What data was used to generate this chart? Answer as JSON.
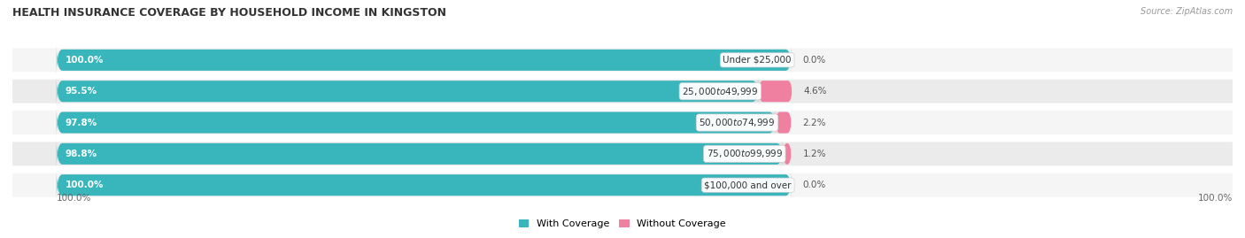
{
  "title": "HEALTH INSURANCE COVERAGE BY HOUSEHOLD INCOME IN KINGSTON",
  "source": "Source: ZipAtlas.com",
  "categories": [
    "Under $25,000",
    "$25,000 to $49,999",
    "$50,000 to $74,999",
    "$75,000 to $99,999",
    "$100,000 and over"
  ],
  "with_coverage": [
    100.0,
    95.5,
    97.8,
    98.8,
    100.0
  ],
  "without_coverage": [
    0.0,
    4.6,
    2.2,
    1.2,
    0.0
  ],
  "color_with": "#39b5bc",
  "color_without": "#f080a0",
  "color_bg_bar": "#e0e0e0",
  "color_row_bg_even": "#f5f5f5",
  "color_row_bg_odd": "#ebebeb",
  "bar_total": 100.0,
  "title_fontsize": 9,
  "label_fontsize": 7.5,
  "pct_fontsize": 7.5,
  "legend_fontsize": 8,
  "source_fontsize": 7,
  "left_pct_label": "100.0%",
  "right_pct_label": "100.0%"
}
